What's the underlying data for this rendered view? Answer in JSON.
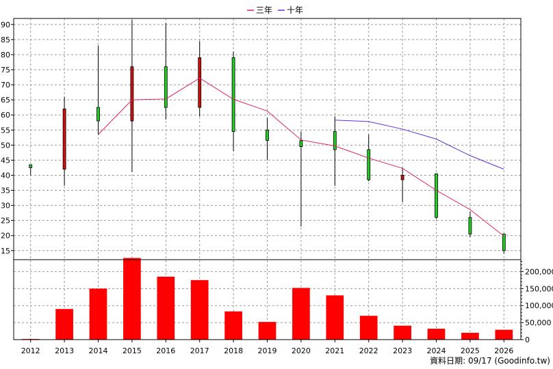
{
  "chart_data": {
    "type": "candlestick_with_volume",
    "legend": [
      {
        "name": "三年",
        "color": "#e0206a"
      },
      {
        "name": "十年",
        "color": "#6030d8"
      }
    ],
    "legend_position": "top-center",
    "grid": true,
    "x": [
      "2012",
      "2013",
      "2014",
      "2015",
      "2016",
      "2017",
      "2018",
      "2019",
      "2020",
      "2021",
      "2022",
      "2023",
      "2024",
      "2025",
      "2026"
    ],
    "price_axis": {
      "ylim": [
        12,
        92
      ],
      "ticks": [
        15,
        20,
        25,
        30,
        35,
        40,
        45,
        50,
        55,
        60,
        65,
        70,
        75,
        80,
        85,
        90
      ],
      "position": "left"
    },
    "volume_axis": {
      "ylim": [
        0,
        235000
      ],
      "ticks": [
        0,
        50000,
        100000,
        150000,
        200000
      ],
      "tick_labels": [
        "0",
        "50,000",
        "100,000",
        "150,000",
        "200,000"
      ],
      "position": "right"
    },
    "candles": [
      {
        "year": "2012",
        "open": 42.5,
        "close": 43.5,
        "high": 43.5,
        "low": 40.0
      },
      {
        "year": "2013",
        "open": 62.0,
        "close": 42.0,
        "high": 66.0,
        "low": 36.5
      },
      {
        "year": "2014",
        "open": 58.0,
        "close": 62.5,
        "high": 83.0,
        "low": 53.5
      },
      {
        "year": "2015",
        "open": 76.0,
        "close": 58.0,
        "high": 91.5,
        "low": 41.0
      },
      {
        "year": "2016",
        "open": 62.5,
        "close": 76.0,
        "high": 90.5,
        "low": 58.5
      },
      {
        "year": "2017",
        "open": 79.0,
        "close": 62.5,
        "high": 84.5,
        "low": 59.5
      },
      {
        "year": "2018",
        "open": 54.5,
        "close": 79.0,
        "high": 81.0,
        "low": 48.0
      },
      {
        "year": "2019",
        "open": 51.5,
        "close": 55.0,
        "high": 59.0,
        "low": 45.0
      },
      {
        "year": "2020",
        "open": 49.5,
        "close": 51.5,
        "high": 54.5,
        "low": 23.0
      },
      {
        "year": "2021",
        "open": 48.5,
        "close": 54.5,
        "high": 59.5,
        "low": 36.5
      },
      {
        "year": "2022",
        "open": 38.5,
        "close": 48.5,
        "high": 53.5,
        "low": 38.0
      },
      {
        "year": "2023",
        "open": 40.0,
        "close": 38.5,
        "high": 42.5,
        "low": 31.0
      },
      {
        "year": "2024",
        "open": 26.0,
        "close": 40.5,
        "high": 40.5,
        "low": 25.5
      },
      {
        "year": "2025",
        "open": 20.5,
        "close": 26.0,
        "high": 28.0,
        "low": 19.5
      },
      {
        "year": "2026",
        "open": 15.0,
        "close": 20.5,
        "high": 20.5,
        "low": 14.0
      }
    ],
    "series": [
      {
        "name": "三年",
        "values": [
          null,
          null,
          53.5,
          65.0,
          65.3,
          72.2,
          65.2,
          61.3,
          51.7,
          49.7,
          45.7,
          42.3,
          35.0,
          28.6,
          19.8
        ]
      },
      {
        "name": "十年",
        "values": [
          null,
          null,
          null,
          null,
          null,
          null,
          null,
          null,
          null,
          58.3,
          57.8,
          55.3,
          52.0,
          46.5,
          42.0
        ]
      }
    ],
    "volume": [
      2000,
      90000,
      150000,
      240000,
      185000,
      175000,
      83000,
      52000,
      152000,
      130000,
      70000,
      41000,
      32000,
      20000,
      29000
    ]
  },
  "footer": {
    "date_label": "資料日期: 09/17 (Goodinfo.tw)"
  }
}
